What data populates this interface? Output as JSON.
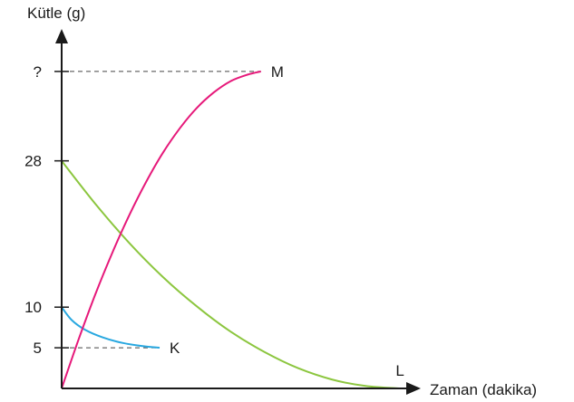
{
  "chart_data": {
    "type": "line",
    "ylabel": "Kütle (g)",
    "xlabel": "Zaman (dakika)",
    "y_ticks": [
      {
        "value": 0,
        "label": ""
      },
      {
        "value": 5,
        "label": "5"
      },
      {
        "value": 10,
        "label": "10"
      },
      {
        "value": 28,
        "label": "28"
      },
      {
        "value": 39,
        "label": "?"
      }
    ],
    "ylim": [
      0,
      43
    ],
    "xlim": [
      0,
      10.5
    ],
    "series": [
      {
        "name": "K",
        "color": "#29a8e0",
        "x": [
          0,
          0.3,
          0.7,
          1.2,
          1.8,
          2.4,
          2.9
        ],
        "values": [
          10,
          8.4,
          7.2,
          6.3,
          5.6,
          5.2,
          5
        ]
      },
      {
        "name": "L",
        "color": "#8cc63f",
        "x": [
          0,
          1,
          2,
          3,
          4,
          5,
          6,
          7,
          8,
          9,
          10
        ],
        "values": [
          28,
          22.7,
          17.9,
          13.7,
          10.1,
          7,
          4.5,
          2.5,
          1.1,
          0.3,
          0
        ]
      },
      {
        "name": "M",
        "color": "#e6197a",
        "x": [
          0,
          0.5,
          1,
          1.5,
          2,
          2.5,
          3,
          3.5,
          4,
          4.5,
          5,
          5.5,
          5.9
        ],
        "values": [
          0,
          6,
          11.6,
          16.7,
          21.3,
          25.4,
          29,
          32,
          34.5,
          36.4,
          37.8,
          38.6,
          39
        ]
      }
    ],
    "guides": [
      {
        "y": 39,
        "to_x": 5.9
      },
      {
        "y": 5,
        "to_x": 2.9
      }
    ],
    "grid": false,
    "legend": "inline-end-labels"
  }
}
